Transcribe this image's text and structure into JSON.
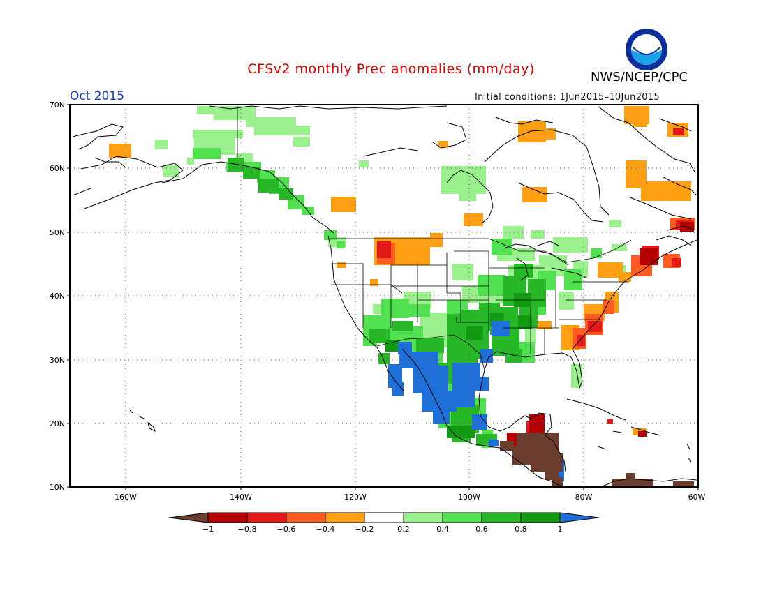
{
  "title": "CFSv2 monthly Prec anomalies (mm/day)",
  "agency": "NWS/NCEP/CPC",
  "logo_text": "NOAA",
  "month_label": "Oct 2015",
  "initial_conditions": "Initial conditions: 1Jun2015–10Jun2015",
  "map": {
    "projection": "lat-lon",
    "lon_range": [
      -170,
      -60
    ],
    "lat_range": [
      10,
      70
    ],
    "lat_labels": [
      "10N",
      "20N",
      "30N",
      "40N",
      "50N",
      "60N",
      "70N"
    ],
    "lon_labels": [
      "160W",
      "140W",
      "120W",
      "100W",
      "80W",
      "60W"
    ],
    "grid": "dotted"
  },
  "colorbar": {
    "labels": [
      "−1",
      "−0.8",
      "−0.6",
      "−0.4",
      "−0.2",
      "0.2",
      "0.4",
      "0.6",
      "0.8",
      "1"
    ],
    "colors": [
      "#6b3d2e",
      "#b40000",
      "#e41a1a",
      "#ff5a1f",
      "#ff9f14",
      "#ffffff",
      "#9af08c",
      "#50e050",
      "#27b827",
      "#139a13",
      "#1e6fd8"
    ]
  },
  "anomaly_regions": [
    {
      "name": "alaska-north-wet",
      "level": "0.2",
      "color": "#9af08c"
    },
    {
      "name": "alaska-gulf-wet",
      "level": "0.6",
      "color": "#27b827"
    },
    {
      "name": "southwest-us-mexico-wet",
      "level": "0.4",
      "color": "#50e050"
    },
    {
      "name": "texas-mexico-very-wet",
      "level": "1",
      "color": "#1e6fd8"
    },
    {
      "name": "northern-rockies-dry",
      "level": "-0.6",
      "color": "#e41a1a"
    },
    {
      "name": "southeast-coast-dry",
      "level": "-0.6",
      "color": "#e41a1a"
    },
    {
      "name": "new-england-dry",
      "level": "-0.8",
      "color": "#b40000"
    },
    {
      "name": "central-america-very-dry",
      "level": "-1",
      "color": "#6b3d2e"
    }
  ]
}
